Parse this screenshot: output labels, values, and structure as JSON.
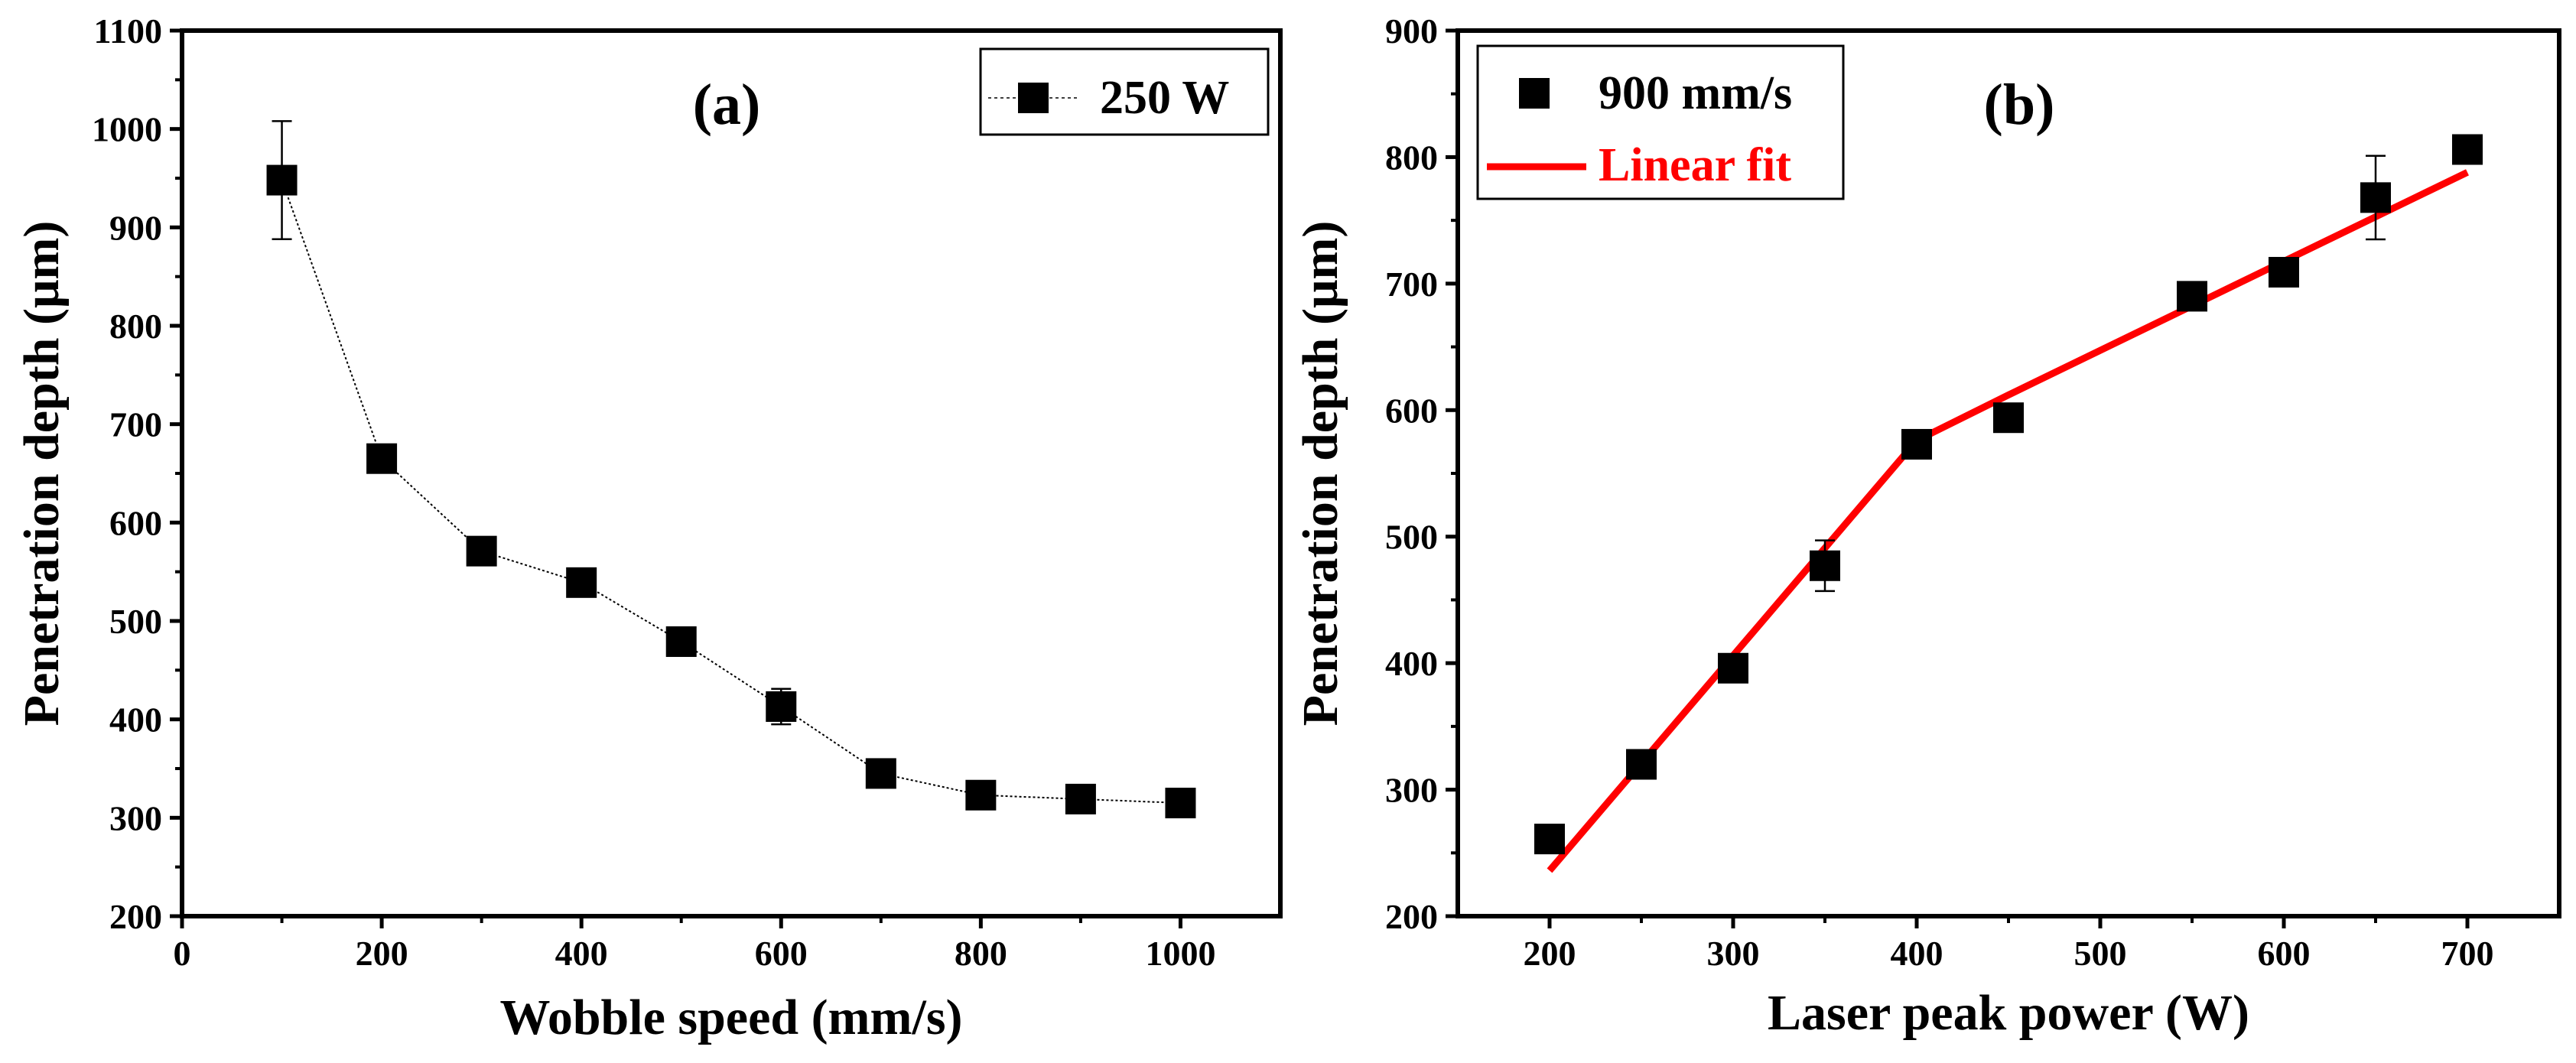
{
  "chart_data": [
    {
      "panel_label": "(a)",
      "type": "line",
      "marker": "square",
      "xlabel": "Wobble speed (mm/s)",
      "ylabel": "Penetration depth (μm)",
      "xlim": [
        0,
        1100
      ],
      "ylim": [
        200,
        1100
      ],
      "xticks": [
        0,
        200,
        400,
        600,
        800,
        1000
      ],
      "yticks": [
        200,
        300,
        400,
        500,
        600,
        700,
        800,
        900,
        1000,
        1100
      ],
      "legend_position": "top-right",
      "series": [
        {
          "name": "250 W",
          "x": [
            100,
            200,
            300,
            400,
            500,
            600,
            700,
            800,
            900,
            1000
          ],
          "y": [
            948,
            665,
            571,
            539,
            479,
            413,
            345,
            323,
            319,
            315
          ],
          "error": [
            60,
            0,
            0,
            0,
            0,
            18,
            0,
            0,
            0,
            0
          ],
          "color": "#000000",
          "line_style": "dotted"
        }
      ]
    },
    {
      "panel_label": "(b)",
      "type": "scatter",
      "marker": "square",
      "xlabel": "Laser peak power (W)",
      "ylabel": "Penetration depth (μm)",
      "xlim": [
        150,
        750
      ],
      "ylim": [
        200,
        900
      ],
      "xticks": [
        200,
        300,
        400,
        500,
        600,
        700
      ],
      "yticks": [
        200,
        300,
        400,
        500,
        600,
        700,
        800,
        900
      ],
      "legend_position": "top-left",
      "series": [
        {
          "name": "900 mm/s",
          "x": [
            200,
            250,
            300,
            350,
            400,
            450,
            550,
            600,
            650,
            700
          ],
          "y": [
            261,
            320,
            396,
            477,
            573,
            594,
            690,
            709,
            768,
            806
          ],
          "error": [
            0,
            0,
            0,
            20,
            0,
            0,
            0,
            0,
            33,
            0
          ],
          "color": "#000000"
        }
      ],
      "fit": {
        "name": "Linear fit",
        "color": "#ff0000",
        "x": [
          200,
          400,
          450,
          700
        ],
        "y": [
          236,
          576,
          612,
          788
        ]
      }
    }
  ]
}
